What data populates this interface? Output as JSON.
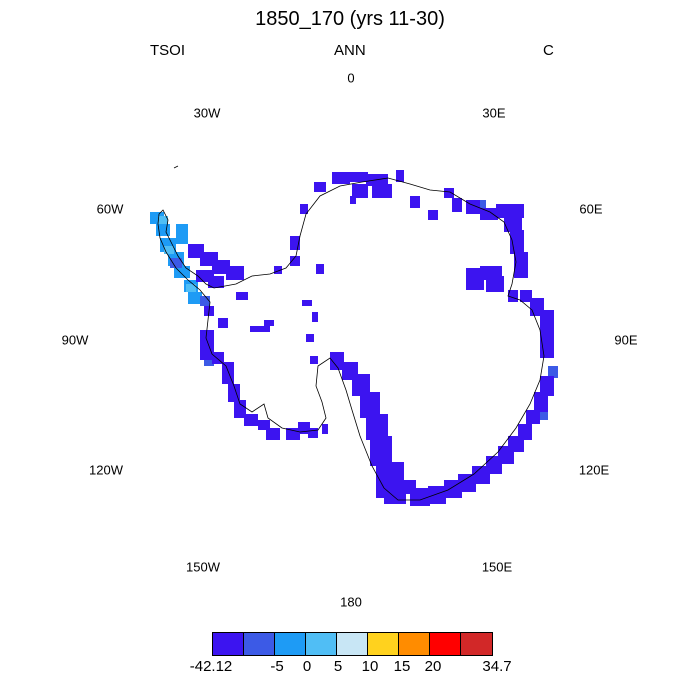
{
  "title": "1850_170 (yrs 11-30)",
  "left_label": "TSOI",
  "center_label": "ANN",
  "right_label": "C",
  "longitudes": {
    "lon_0": "0",
    "lon_30e": "30E",
    "lon_60e": "60E",
    "lon_90e": "90E",
    "lon_120e": "120E",
    "lon_150e": "150E",
    "lon_180": "180",
    "lon_150w": "150W",
    "lon_120w": "120W",
    "lon_90w": "90W",
    "lon_60w": "60W",
    "lon_30w": "30W"
  },
  "colorbar": {
    "colors": [
      "#3c14f0",
      "#3c5ae6",
      "#1e9bf5",
      "#50bef5",
      "#c8e6f5",
      "#ffd21e",
      "#ff8c00",
      "#ff0000",
      "#d22828"
    ],
    "labels": {
      "min": "-42.12",
      "t1": "-5",
      "t2": "0",
      "t3": "5",
      "t4": "10",
      "t5": "15",
      "t6": "20",
      "max": "34.7"
    }
  }
}
